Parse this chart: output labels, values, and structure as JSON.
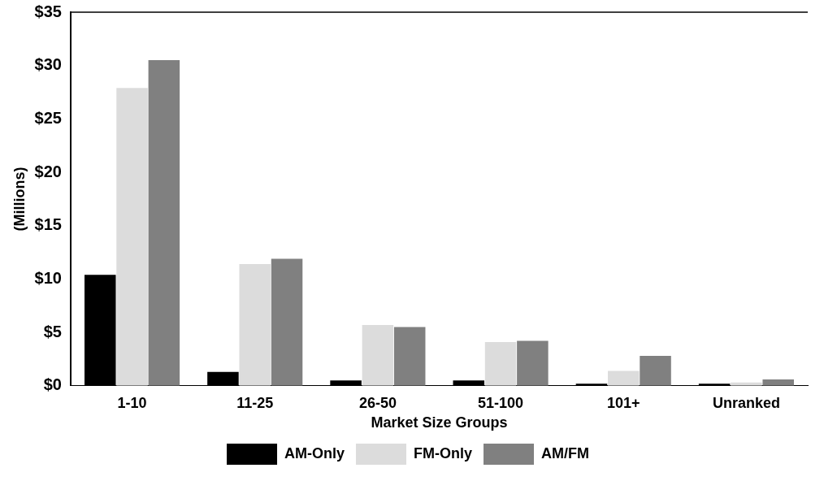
{
  "chart_data": {
    "type": "bar",
    "xlabel": "Market Size Groups",
    "ylabel": "(Millions)",
    "categories": [
      "1-10",
      "11-25",
      "26-50",
      "51-100",
      "101+",
      "Unranked"
    ],
    "series": [
      {
        "name": "AM-Only",
        "color": "#000000",
        "values": [
          10.4,
          1.3,
          0.5,
          0.5,
          0.2,
          0.2
        ]
      },
      {
        "name": "FM-Only",
        "color": "#dcdcdc",
        "values": [
          27.9,
          11.4,
          5.7,
          4.1,
          1.4,
          0.3
        ]
      },
      {
        "name": "AM/FM",
        "color": "#808080",
        "values": [
          30.5,
          11.9,
          5.5,
          4.2,
          2.8,
          0.6
        ]
      }
    ],
    "ylim": [
      0,
      35
    ],
    "yticks": [
      {
        "value": 0,
        "label": "$0"
      },
      {
        "value": 5,
        "label": "$5"
      },
      {
        "value": 10,
        "label": "$10"
      },
      {
        "value": 15,
        "label": "$15"
      },
      {
        "value": 20,
        "label": "$20"
      },
      {
        "value": 25,
        "label": "$25"
      },
      {
        "value": 30,
        "label": "$30"
      },
      {
        "value": 35,
        "label": "$35"
      }
    ],
    "grid": false,
    "legend": "bottom"
  }
}
